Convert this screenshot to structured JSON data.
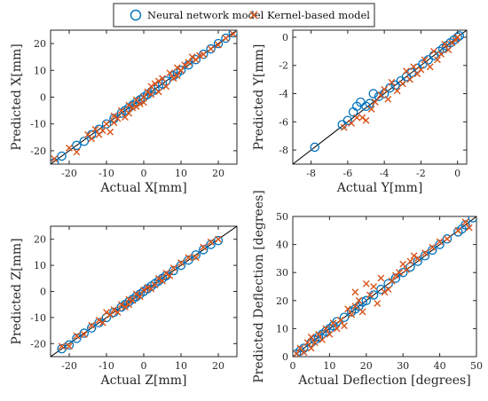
{
  "colors": {
    "nn": "#0072BD",
    "kernel": "#D95319",
    "axis": "#262626",
    "diag": "#000000"
  },
  "legend": {
    "nn_label": "Neural network model",
    "kernel_label": "Kernel-based model",
    "placement": "top-center"
  },
  "chart_data": [
    {
      "type": "scatter",
      "xlabel": "Actual X[mm]",
      "ylabel": "Predicted X[mm]",
      "xlim": [
        -25,
        25
      ],
      "ylim": [
        -25,
        25
      ],
      "xticks": [
        -20,
        -10,
        0,
        10,
        20
      ],
      "yticks": [
        -20,
        -10,
        0,
        10,
        20
      ],
      "grid": false,
      "series": [
        {
          "name": "Neural network model",
          "marker": "circle",
          "x": [
            -24,
            -22,
            -18,
            -16,
            -14,
            -12,
            -10,
            -8,
            -6,
            -5,
            -4,
            -3,
            -2,
            -1,
            0,
            1,
            2,
            3,
            4,
            5,
            6,
            8,
            9,
            10,
            12,
            14,
            16,
            18,
            20,
            22,
            24
          ],
          "y": [
            -24.5,
            -22,
            -18,
            -16.5,
            -14,
            -12,
            -10,
            -8,
            -6,
            -5,
            -4,
            -3,
            -2,
            -1,
            0,
            1,
            2,
            3,
            4,
            5,
            6,
            8,
            9,
            10,
            12,
            14,
            16,
            18,
            20,
            22,
            24
          ]
        },
        {
          "name": "Kernel-based model",
          "marker": "x",
          "x": [
            -24,
            -20,
            -18,
            -15,
            -14,
            -13,
            -12,
            -11,
            -10,
            -9,
            -8,
            -8,
            -7,
            -6,
            -5,
            -4,
            -4,
            -3,
            -2,
            -2,
            -1,
            0,
            0,
            1,
            2,
            2,
            3,
            4,
            4,
            5,
            6,
            7,
            8,
            9,
            9,
            10,
            11,
            12,
            13,
            14,
            15,
            16,
            18,
            20,
            22,
            24
          ],
          "y": [
            -23,
            -19,
            -20.5,
            -14,
            -15.5,
            -12,
            -14,
            -12.5,
            -10,
            -13,
            -7,
            -9.5,
            -8,
            -5,
            -7.5,
            -3,
            -6,
            -4,
            -1,
            -3.5,
            -2.5,
            0,
            -2,
            2,
            1,
            4,
            5,
            2,
            6,
            7,
            4,
            9,
            7,
            11,
            8,
            10,
            12,
            13,
            15,
            14,
            15.5,
            16,
            18,
            19.5,
            22,
            23.5
          ]
        }
      ]
    },
    {
      "type": "scatter",
      "xlabel": "Actual Y[mm]",
      "ylabel": "Predicted Y[mm]",
      "xlim": [
        -9,
        0.5
      ],
      "ylim": [
        -9,
        0.5
      ],
      "xticks": [
        -8,
        -6,
        -4,
        -2,
        0
      ],
      "yticks": [
        -8,
        -6,
        -4,
        -2,
        0
      ],
      "grid": false,
      "series": [
        {
          "name": "Neural network model",
          "marker": "circle",
          "x": [
            -7.8,
            -6.3,
            -6.0,
            -5.7,
            -5.5,
            -5.3,
            -5.0,
            -4.8,
            -4.6,
            -4.3,
            -4.0,
            -3.7,
            -3.4,
            -3.1,
            -2.8,
            -2.5,
            -2.2,
            -1.9,
            -1.6,
            -1.3,
            -1.0,
            -0.8,
            -0.6,
            -0.4,
            -0.2,
            0.0,
            0.1
          ],
          "y": [
            -7.8,
            -6.2,
            -5.9,
            -5.3,
            -4.9,
            -4.6,
            -4.9,
            -4.7,
            -4.0,
            -4.2,
            -4.0,
            -3.6,
            -3.4,
            -3.1,
            -2.8,
            -2.5,
            -2.2,
            -1.9,
            -1.6,
            -1.3,
            -1.0,
            -0.8,
            -0.6,
            -0.4,
            -0.2,
            0.0,
            0.1
          ]
        },
        {
          "name": "Kernel-based model",
          "marker": "x",
          "x": [
            -6.2,
            -5.8,
            -5.5,
            -5.2,
            -5.0,
            -4.7,
            -4.5,
            -4.2,
            -4.0,
            -3.8,
            -3.6,
            -3.3,
            -3.0,
            -2.8,
            -2.6,
            -2.4,
            -2.2,
            -2.0,
            -1.8,
            -1.5,
            -1.3,
            -1.1,
            -0.9,
            -0.7,
            -0.5,
            -0.3,
            -0.1,
            0.0
          ],
          "y": [
            -6.4,
            -6.1,
            -5.7,
            -5.7,
            -5.9,
            -5.1,
            -4.6,
            -4.1,
            -3.7,
            -4.4,
            -3.2,
            -3.8,
            -3.3,
            -2.4,
            -3.0,
            -2.1,
            -2.6,
            -2.3,
            -1.6,
            -2.1,
            -1.0,
            -1.6,
            -1.2,
            -0.5,
            -0.9,
            -0.4,
            -0.2,
            0.0
          ]
        }
      ]
    },
    {
      "type": "scatter",
      "xlabel": "Actual Z[mm]",
      "ylabel": "Predicted Z[mm]",
      "xlim": [
        -25,
        25
      ],
      "ylim": [
        -25,
        25
      ],
      "xticks": [
        -20,
        -10,
        0,
        10,
        20
      ],
      "yticks": [
        -20,
        -10,
        0,
        10,
        20
      ],
      "grid": false,
      "series": [
        {
          "name": "Neural network model",
          "marker": "circle",
          "x": [
            -22,
            -20,
            -18,
            -16,
            -14,
            -12,
            -10,
            -8,
            -6,
            -5,
            -4,
            -3,
            -2,
            -1,
            0,
            1,
            2,
            3,
            4,
            5,
            6,
            8,
            10,
            12,
            14,
            16,
            18,
            20
          ],
          "y": [
            -22,
            -20.5,
            -18,
            -16,
            -14,
            -12,
            -10,
            -8,
            -6,
            -5,
            -4,
            -3,
            -2,
            -1,
            0,
            1,
            2,
            3,
            4,
            5,
            6,
            8,
            10,
            12,
            14,
            16,
            18,
            19.5
          ]
        },
        {
          "name": "Kernel-based model",
          "marker": "x",
          "x": [
            -22,
            -20,
            -18,
            -16,
            -14,
            -12,
            -11,
            -10,
            -9,
            -8,
            -7,
            -6,
            -5,
            -4,
            -4,
            -3,
            -2,
            -1,
            0,
            1,
            2,
            3,
            4,
            5,
            6,
            7,
            8,
            10,
            12,
            14,
            16,
            18,
            20
          ],
          "y": [
            -21,
            -21,
            -17,
            -16.5,
            -13,
            -11,
            -12,
            -8,
            -9,
            -7,
            -8,
            -5,
            -6,
            -3,
            -5,
            -3.5,
            -1,
            -2,
            0.5,
            1.5,
            1,
            2.5,
            5,
            4,
            7,
            6,
            9,
            11,
            13,
            13,
            17,
            19,
            20
          ]
        }
      ]
    },
    {
      "type": "scatter",
      "xlabel": "Actual Deflection [degrees]",
      "ylabel": "Predicted Deflection [degrees]",
      "xlim": [
        0,
        50
      ],
      "ylim": [
        0,
        50
      ],
      "xticks": [
        0,
        10,
        20,
        30,
        40,
        50
      ],
      "yticks": [
        0,
        10,
        20,
        30,
        40,
        50
      ],
      "grid": false,
      "series": [
        {
          "name": "Neural network model",
          "marker": "circle",
          "x": [
            1,
            2,
            3,
            5,
            6,
            7,
            8,
            9,
            10,
            11,
            12,
            14,
            16,
            17,
            18,
            19,
            20,
            22,
            24,
            26,
            28,
            30,
            32,
            34,
            36,
            38,
            40,
            42,
            45,
            46,
            47,
            49
          ],
          "y": [
            1,
            2,
            3,
            5,
            6,
            7,
            8,
            9,
            10,
            11,
            12.5,
            14,
            16,
            17,
            18,
            19.5,
            20,
            22,
            24,
            26,
            28,
            30,
            32,
            34,
            36,
            38,
            40,
            42,
            44.5,
            45.5,
            47,
            49.5
          ]
        },
        {
          "name": "Kernel-based model",
          "marker": "x",
          "x": [
            1,
            2,
            3,
            4,
            5,
            5,
            6,
            7,
            8,
            9,
            10,
            11,
            12,
            13,
            14,
            15,
            16,
            17,
            17,
            18,
            19,
            20,
            21,
            22,
            23,
            24,
            25,
            26,
            27,
            28,
            29,
            30,
            31,
            32,
            33,
            34,
            36,
            38,
            40,
            42,
            45,
            47,
            48
          ],
          "y": [
            1,
            3,
            1.5,
            5,
            3,
            7,
            5,
            8,
            6,
            10,
            8,
            12,
            10,
            13,
            11,
            17,
            15,
            23,
            18,
            20,
            16,
            26,
            22,
            25,
            19,
            28,
            23,
            24,
            27,
            29,
            30,
            33,
            31,
            34,
            36,
            35,
            37,
            39,
            41,
            42,
            45,
            48,
            46
          ]
        }
      ]
    }
  ]
}
